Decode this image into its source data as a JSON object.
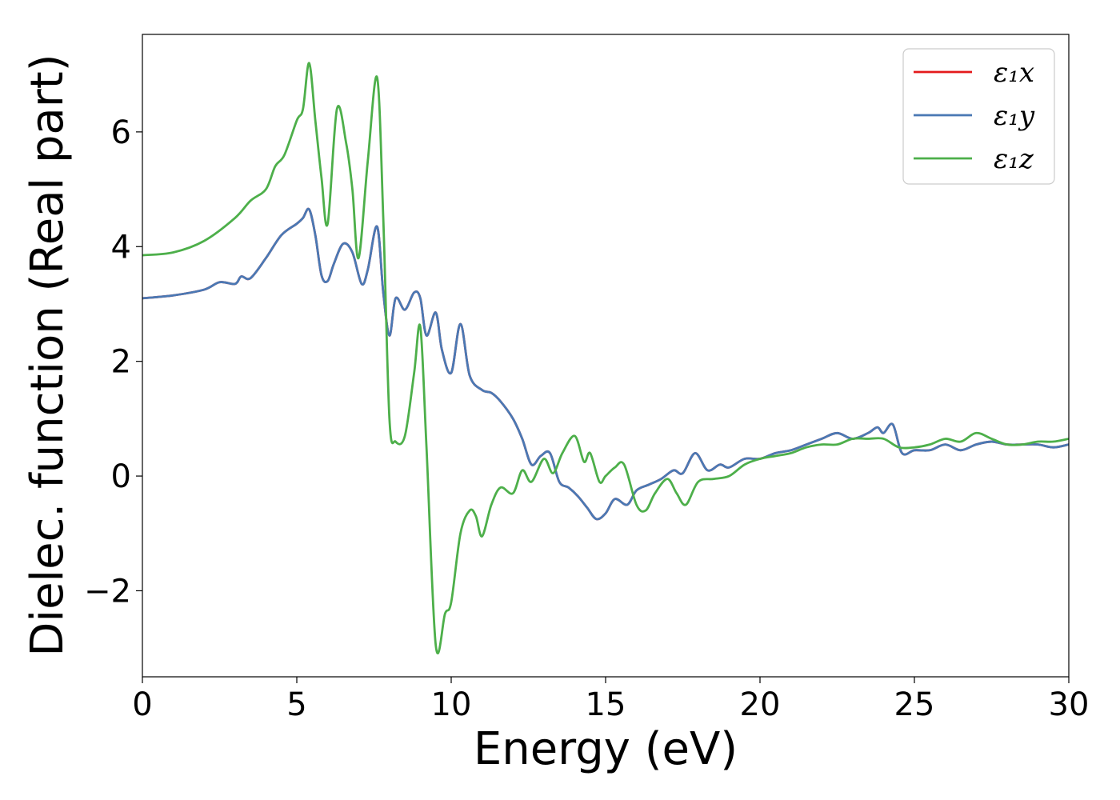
{
  "chart_data": {
    "type": "line",
    "xlabel": "Energy (eV)",
    "ylabel": "Dielec. function (Real part)",
    "xlim": [
      0,
      30
    ],
    "ylim": [
      -3.5,
      7.7
    ],
    "xticks": [
      0,
      5,
      10,
      15,
      20,
      25,
      30
    ],
    "yticks": [
      -2,
      0,
      2,
      4,
      6
    ],
    "xtick_labels": [
      "0",
      "5",
      "10",
      "15",
      "20",
      "25",
      "30"
    ],
    "ytick_labels": [
      "−2",
      "0",
      "2",
      "4",
      "6"
    ],
    "legend_position": "top-right",
    "grid": false,
    "series": [
      {
        "name": "ε₁x",
        "color": "#e41a1c",
        "x": [
          0,
          1,
          2,
          2.5,
          3,
          3.2,
          3.5,
          4,
          4.5,
          5,
          5.2,
          5.4,
          5.6,
          5.8,
          6,
          6.2,
          6.5,
          6.8,
          7.1,
          7.3,
          7.6,
          7.8,
          8,
          8.2,
          8.5,
          8.8,
          9,
          9.2,
          9.5,
          9.7,
          10,
          10.3,
          10.6,
          11,
          11.3,
          11.6,
          12,
          12.3,
          12.6,
          12.9,
          13.2,
          13.5,
          13.8,
          14.1,
          14.4,
          14.7,
          15,
          15.3,
          15.7,
          16,
          16.4,
          16.8,
          17.2,
          17.5,
          17.9,
          18.3,
          18.7,
          19,
          19.5,
          20,
          20.5,
          21,
          21.5,
          22,
          22.5,
          23,
          23.5,
          23.8,
          24,
          24.3,
          24.6,
          25,
          25.5,
          26,
          26.5,
          27,
          27.5,
          28,
          28.5,
          29,
          29.5,
          30
        ],
        "values": [
          3.1,
          3.15,
          3.25,
          3.38,
          3.35,
          3.48,
          3.45,
          3.8,
          4.2,
          4.4,
          4.5,
          4.65,
          4.2,
          3.5,
          3.4,
          3.7,
          4.05,
          3.9,
          3.35,
          3.6,
          4.35,
          3.2,
          2.45,
          3.1,
          2.9,
          3.2,
          3.1,
          2.45,
          2.85,
          2.2,
          1.8,
          2.65,
          1.75,
          1.5,
          1.45,
          1.3,
          1.0,
          0.65,
          0.2,
          0.35,
          0.4,
          -0.1,
          -0.2,
          -0.35,
          -0.55,
          -0.75,
          -0.65,
          -0.4,
          -0.5,
          -0.25,
          -0.15,
          -0.05,
          0.1,
          0.05,
          0.4,
          0.1,
          0.2,
          0.15,
          0.3,
          0.3,
          0.4,
          0.45,
          0.55,
          0.65,
          0.75,
          0.65,
          0.75,
          0.85,
          0.75,
          0.9,
          0.4,
          0.45,
          0.45,
          0.55,
          0.45,
          0.55,
          0.6,
          0.55,
          0.55,
          0.55,
          0.5,
          0.55
        ]
      },
      {
        "name": "ε₁y",
        "color": "#4a79b4",
        "x": [
          0,
          1,
          2,
          2.5,
          3,
          3.2,
          3.5,
          4,
          4.5,
          5,
          5.2,
          5.4,
          5.6,
          5.8,
          6,
          6.2,
          6.5,
          6.8,
          7.1,
          7.3,
          7.6,
          7.8,
          8,
          8.2,
          8.5,
          8.8,
          9,
          9.2,
          9.5,
          9.7,
          10,
          10.3,
          10.6,
          11,
          11.3,
          11.6,
          12,
          12.3,
          12.6,
          12.9,
          13.2,
          13.5,
          13.8,
          14.1,
          14.4,
          14.7,
          15,
          15.3,
          15.7,
          16,
          16.4,
          16.8,
          17.2,
          17.5,
          17.9,
          18.3,
          18.7,
          19,
          19.5,
          20,
          20.5,
          21,
          21.5,
          22,
          22.5,
          23,
          23.5,
          23.8,
          24,
          24.3,
          24.6,
          25,
          25.5,
          26,
          26.5,
          27,
          27.5,
          28,
          28.5,
          29,
          29.5,
          30
        ],
        "values": [
          3.1,
          3.15,
          3.25,
          3.38,
          3.35,
          3.48,
          3.45,
          3.8,
          4.2,
          4.4,
          4.5,
          4.65,
          4.2,
          3.5,
          3.4,
          3.7,
          4.05,
          3.9,
          3.35,
          3.6,
          4.35,
          3.2,
          2.45,
          3.1,
          2.9,
          3.2,
          3.1,
          2.45,
          2.85,
          2.2,
          1.8,
          2.65,
          1.75,
          1.5,
          1.45,
          1.3,
          1.0,
          0.65,
          0.2,
          0.35,
          0.4,
          -0.1,
          -0.2,
          -0.35,
          -0.55,
          -0.75,
          -0.65,
          -0.4,
          -0.5,
          -0.25,
          -0.15,
          -0.05,
          0.1,
          0.05,
          0.4,
          0.1,
          0.2,
          0.15,
          0.3,
          0.3,
          0.4,
          0.45,
          0.55,
          0.65,
          0.75,
          0.65,
          0.75,
          0.85,
          0.75,
          0.9,
          0.4,
          0.45,
          0.45,
          0.55,
          0.45,
          0.55,
          0.6,
          0.55,
          0.55,
          0.55,
          0.5,
          0.55
        ]
      },
      {
        "name": "ε₁z",
        "color": "#4daf4a",
        "x": [
          0,
          1,
          2,
          3,
          3.5,
          4,
          4.3,
          4.6,
          5,
          5.2,
          5.4,
          5.6,
          5.8,
          6,
          6.3,
          6.6,
          6.8,
          7,
          7.3,
          7.6,
          7.8,
          8,
          8.2,
          8.5,
          8.8,
          9,
          9.2,
          9.5,
          9.8,
          10,
          10.3,
          10.6,
          10.8,
          11,
          11.3,
          11.6,
          12,
          12.3,
          12.6,
          13,
          13.3,
          13.6,
          14,
          14.3,
          14.5,
          14.8,
          15,
          15.3,
          15.6,
          16,
          16.3,
          16.6,
          17,
          17.3,
          17.6,
          18,
          18.5,
          19,
          19.5,
          20,
          20.5,
          21,
          21.5,
          22,
          22.5,
          23,
          23.5,
          24,
          24.5,
          25,
          25.5,
          26,
          26.5,
          27,
          27.5,
          28,
          28.5,
          29,
          29.5,
          30
        ],
        "values": [
          3.85,
          3.9,
          4.1,
          4.5,
          4.8,
          5.0,
          5.4,
          5.6,
          6.2,
          6.4,
          7.2,
          6.2,
          5.2,
          4.4,
          6.4,
          5.8,
          5.0,
          3.8,
          5.5,
          6.95,
          4.5,
          1.0,
          0.6,
          0.7,
          1.8,
          2.6,
          0.5,
          -2.95,
          -2.4,
          -2.2,
          -1.0,
          -0.6,
          -0.7,
          -1.05,
          -0.5,
          -0.2,
          -0.3,
          0.1,
          -0.1,
          0.3,
          0.05,
          0.4,
          0.7,
          0.25,
          0.4,
          -0.1,
          0.0,
          0.15,
          0.2,
          -0.5,
          -0.6,
          -0.3,
          -0.05,
          -0.3,
          -0.5,
          -0.1,
          -0.05,
          0.0,
          0.2,
          0.3,
          0.35,
          0.4,
          0.5,
          0.55,
          0.55,
          0.65,
          0.65,
          0.65,
          0.5,
          0.5,
          0.55,
          0.65,
          0.6,
          0.75,
          0.65,
          0.55,
          0.55,
          0.6,
          0.6,
          0.65
        ]
      }
    ]
  }
}
